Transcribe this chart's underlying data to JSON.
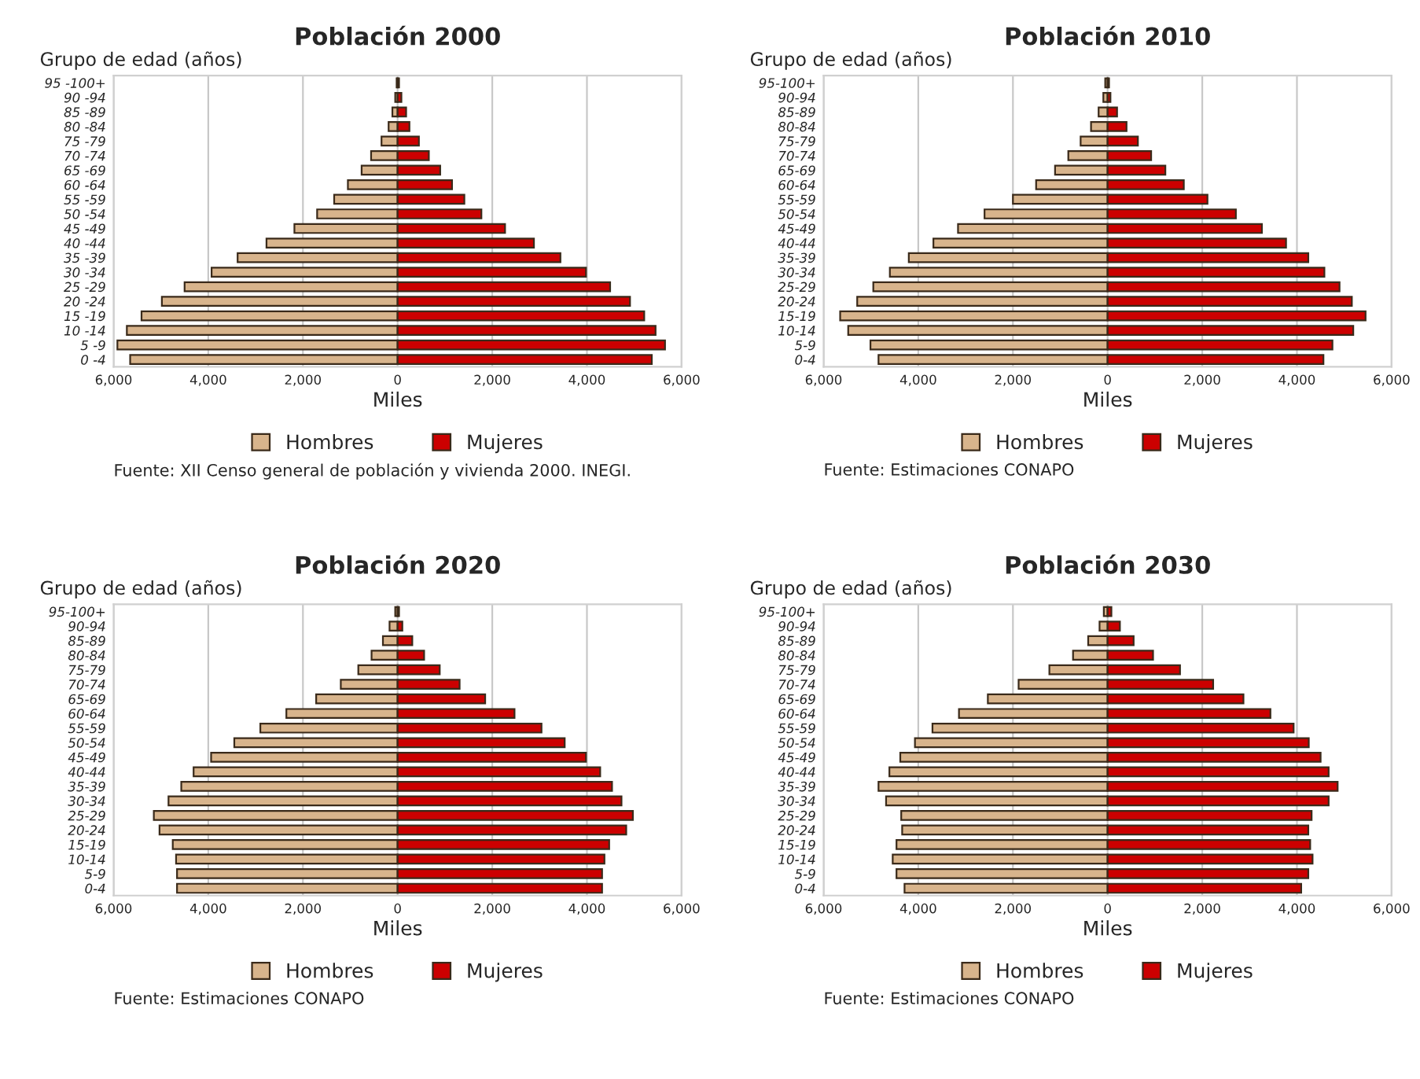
{
  "chart_data": [
    {
      "type": "bar",
      "orientation": "horizontal",
      "stacked": true,
      "title": "Población 2000",
      "xlabel": "Miles",
      "ylabel": "Grupo de edad (años)",
      "categories": [
        "95 -100+",
        "90 -94",
        "85 -89",
        "80 -84",
        "75 -79",
        "70 -74",
        "65 -69",
        "60 -64",
        "55 -59",
        "50 -54",
        "45 -49",
        "40 -44",
        "35 -39",
        "30 -34",
        "25 -29",
        "20 -24",
        "15 -19",
        "10 -14",
        "5 -9",
        "0 -4"
      ],
      "series": [
        {
          "name": "Hombres",
          "color": "#d8b48c",
          "values": [
            -20,
            -50,
            -110,
            -190,
            -340,
            -560,
            -760,
            -1050,
            -1340,
            -1700,
            -2180,
            -2770,
            -3380,
            -3930,
            -4500,
            -4980,
            -5410,
            -5720,
            -5920,
            -5650
          ]
        },
        {
          "name": "Mujeres",
          "color": "#cc0000",
          "values": [
            30,
            80,
            180,
            250,
            450,
            660,
            900,
            1150,
            1410,
            1770,
            2270,
            2880,
            3440,
            3980,
            4490,
            4910,
            5210,
            5450,
            5650,
            5370
          ]
        }
      ],
      "xlim": [
        -6000,
        6000
      ],
      "xticks": [
        {
          "value": -6000,
          "label": "6,000"
        },
        {
          "value": -4000,
          "label": "4,000"
        },
        {
          "value": -2000,
          "label": "2,000"
        },
        0,
        {
          "value": 2000,
          "label": "2,000"
        },
        {
          "value": 4000,
          "label": "4,000"
        },
        {
          "value": 6000,
          "label": "6,000"
        }
      ],
      "grid": "x",
      "legend": "bottom",
      "annotations": [
        "Fuente: XII Censo general de población y vivienda 2000. INEGI."
      ]
    },
    {
      "type": "bar",
      "orientation": "horizontal",
      "stacked": true,
      "title": "Población 2010",
      "xlabel": "Miles",
      "ylabel": "Grupo de edad (años)",
      "categories": [
        "95-100+",
        "90-94",
        "85-89",
        "80-84",
        "75-79",
        "70-74",
        "65-69",
        "60-64",
        "55-59",
        "50-54",
        "45-49",
        "40-44",
        "35-39",
        "30-34",
        "25-29",
        "20-24",
        "15-19",
        "10-14",
        "5-9",
        "0-4"
      ],
      "series": [
        {
          "name": "Hombres",
          "color": "#d8b48c",
          "values": [
            -50,
            -90,
            -190,
            -350,
            -570,
            -830,
            -1110,
            -1510,
            -2000,
            -2600,
            -3160,
            -3680,
            -4200,
            -4600,
            -4950,
            -5290,
            -5650,
            -5480,
            -5010,
            -4840
          ]
        },
        {
          "name": "Mujeres",
          "color": "#cc0000",
          "values": [
            30,
            60,
            200,
            400,
            640,
            920,
            1220,
            1610,
            2110,
            2710,
            3260,
            3770,
            4240,
            4580,
            4900,
            5160,
            5450,
            5190,
            4750,
            4560
          ]
        }
      ],
      "xlim": [
        -6000,
        6000
      ],
      "xticks": [
        {
          "value": -6000,
          "label": "6,000"
        },
        {
          "value": -4000,
          "label": "4,000"
        },
        {
          "value": -2000,
          "label": "2,000"
        },
        0,
        {
          "value": 2000,
          "label": "2,000"
        },
        {
          "value": 4000,
          "label": "4,000"
        },
        {
          "value": 6000,
          "label": "6,000"
        }
      ],
      "grid": "x",
      "legend": "bottom",
      "annotations": [
        "Fuente: Estimaciones CONAPO"
      ]
    },
    {
      "type": "bar",
      "orientation": "horizontal",
      "stacked": true,
      "title": "Población 2020",
      "xlabel": "Miles",
      "ylabel": "Grupo de edad (años)",
      "categories": [
        "95-100+",
        "90-94",
        "85-89",
        "80-84",
        "75-79",
        "70-74",
        "65-69",
        "60-64",
        "55-59",
        "50-54",
        "45-49",
        "40-44",
        "35-39",
        "30-34",
        "25-29",
        "20-24",
        "15-19",
        "10-14",
        "5-9",
        "0-4"
      ],
      "series": [
        {
          "name": "Hombres",
          "color": "#d8b48c",
          "values": [
            -50,
            -170,
            -310,
            -550,
            -830,
            -1200,
            -1720,
            -2350,
            -2900,
            -3450,
            -3940,
            -4310,
            -4570,
            -4840,
            -5150,
            -5030,
            -4750,
            -4680,
            -4660,
            -4660
          ]
        },
        {
          "name": "Mujeres",
          "color": "#cc0000",
          "values": [
            30,
            100,
            310,
            560,
            890,
            1310,
            1850,
            2470,
            3040,
            3530,
            3980,
            4280,
            4530,
            4730,
            4970,
            4830,
            4470,
            4370,
            4320,
            4320
          ]
        }
      ],
      "xlim": [
        -6000,
        6000
      ],
      "xticks": [
        {
          "value": -6000,
          "label": "6,000"
        },
        {
          "value": -4000,
          "label": "4,000"
        },
        {
          "value": -2000,
          "label": "2,000"
        },
        0,
        {
          "value": 2000,
          "label": "2,000"
        },
        {
          "value": 4000,
          "label": "4,000"
        },
        {
          "value": 6000,
          "label": "6,000"
        }
      ],
      "grid": "x",
      "legend": "bottom",
      "annotations": [
        "Fuente: Estimaciones CONAPO"
      ]
    },
    {
      "type": "bar",
      "orientation": "horizontal",
      "stacked": true,
      "title": "Población 2030",
      "xlabel": "Miles",
      "ylabel": "Grupo de edad (años)",
      "categories": [
        "95-100+",
        "90-94",
        "85-89",
        "80-84",
        "75-79",
        "70-74",
        "65-69",
        "60-64",
        "55-59",
        "50-54",
        "45-49",
        "40-44",
        "35-39",
        "30-34",
        "25-29",
        "20-24",
        "15-19",
        "10-14",
        "5-9",
        "0-4"
      ],
      "series": [
        {
          "name": "Hombres",
          "color": "#d8b48c",
          "values": [
            -80,
            -170,
            -410,
            -730,
            -1230,
            -1880,
            -2530,
            -3140,
            -3700,
            -4070,
            -4380,
            -4610,
            -4840,
            -4680,
            -4360,
            -4340,
            -4460,
            -4540,
            -4460,
            -4290
          ]
        },
        {
          "name": "Mujeres",
          "color": "#cc0000",
          "values": [
            80,
            260,
            550,
            960,
            1530,
            2230,
            2870,
            3440,
            3930,
            4250,
            4500,
            4670,
            4860,
            4670,
            4310,
            4240,
            4280,
            4330,
            4240,
            4090
          ]
        }
      ],
      "xlim": [
        -6000,
        6000
      ],
      "xticks": [
        {
          "value": -6000,
          "label": "6,000"
        },
        {
          "value": -4000,
          "label": "4,000"
        },
        {
          "value": -2000,
          "label": "2,000"
        },
        0,
        {
          "value": 2000,
          "label": "2,000"
        },
        {
          "value": 4000,
          "label": "4,000"
        },
        {
          "value": 6000,
          "label": "6,000"
        }
      ],
      "grid": "x",
      "legend": "bottom",
      "annotations": [
        "Fuente: Estimaciones CONAPO"
      ]
    }
  ]
}
